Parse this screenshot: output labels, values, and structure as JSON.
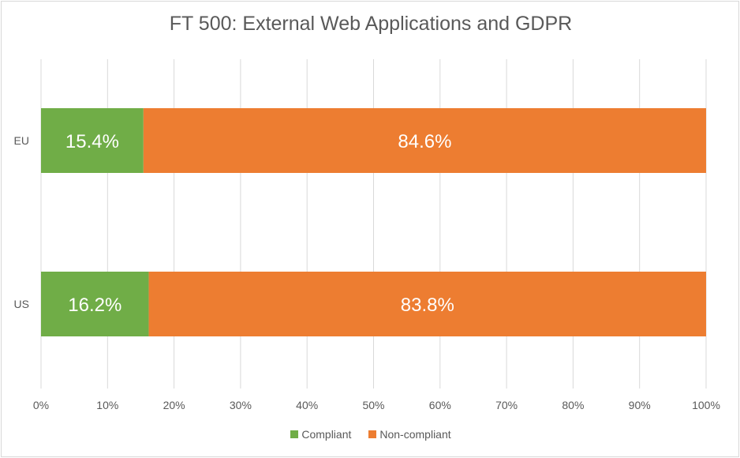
{
  "chart_data": {
    "type": "bar",
    "orientation": "horizontal",
    "stacked": "percent",
    "title": "FT 500: External Web Applications and GDPR",
    "xlabel": "",
    "ylabel": "",
    "categories": [
      "EU",
      "US"
    ],
    "series": [
      {
        "name": "Compliant",
        "values": [
          15.4,
          16.2
        ],
        "labels": [
          "15.4%",
          "16.2%"
        ],
        "color": "#70ad47"
      },
      {
        "name": "Non-compliant",
        "values": [
          84.6,
          83.8
        ],
        "labels": [
          "84.6%",
          "83.8%"
        ],
        "color": "#ed7d31"
      }
    ],
    "xlim": [
      0,
      100
    ],
    "xticks": [
      "0%",
      "10%",
      "20%",
      "30%",
      "40%",
      "50%",
      "60%",
      "70%",
      "80%",
      "90%",
      "100%"
    ],
    "grid": "vertical",
    "legend": "bottom"
  },
  "colors": {
    "gridline": "#d9d9d9",
    "text": "#595959",
    "label_text": "#ffffff"
  }
}
